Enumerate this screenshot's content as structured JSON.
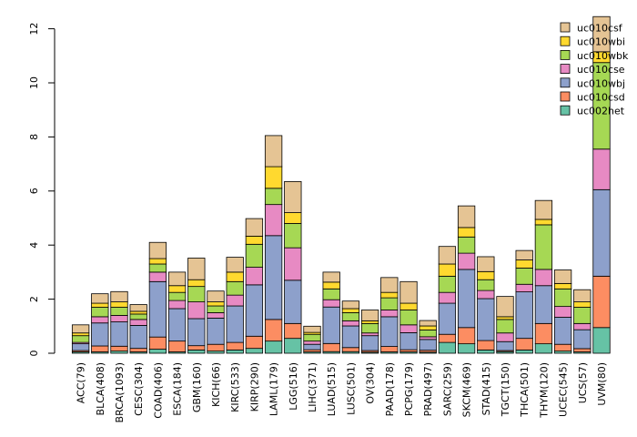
{
  "chart_data": {
    "type": "bar",
    "stacked": true,
    "title": "",
    "xlabel": "",
    "ylabel": "",
    "ylim": [
      0,
      12.5
    ],
    "yticks": [
      0,
      2,
      4,
      6,
      8,
      10,
      12
    ],
    "legend_position": "top-right",
    "categories": [
      "ACC(79)",
      "BLCA(408)",
      "BRCA(1093)",
      "CESC(304)",
      "COAD(406)",
      "ESCA(184)",
      "GBM(160)",
      "KICH(66)",
      "KIRC(533)",
      "KIRP(290)",
      "LAML(179)",
      "LGG(516)",
      "LIHC(371)",
      "LUAD(515)",
      "LUSC(501)",
      "OV(304)",
      "PAAD(178)",
      "PCPG(179)",
      "PRAD(497)",
      "SARC(259)",
      "SKCM(469)",
      "STAD(415)",
      "TGCT(150)",
      "THCA(501)",
      "THYM(120)",
      "UCEC(545)",
      "UCS(57)",
      "UVM(80)"
    ],
    "series": [
      {
        "name": "uc002het",
        "color": "#66c2a5",
        "values": [
          0.05,
          0.05,
          0.08,
          0.05,
          0.15,
          0.05,
          0.12,
          0.08,
          0.12,
          0.18,
          0.45,
          0.55,
          0.05,
          0.06,
          0.06,
          0.04,
          0.05,
          0.05,
          0.04,
          0.4,
          0.35,
          0.12,
          0.06,
          0.12,
          0.35,
          0.08,
          0.05,
          0.95
        ]
      },
      {
        "name": "uc010csd",
        "color": "#fc8d62",
        "values": [
          0.05,
          0.22,
          0.18,
          0.13,
          0.45,
          0.4,
          0.16,
          0.25,
          0.28,
          0.45,
          0.8,
          0.55,
          0.08,
          0.3,
          0.15,
          0.06,
          0.2,
          0.08,
          0.07,
          0.3,
          0.6,
          0.35,
          0.04,
          0.43,
          0.75,
          0.25,
          0.12,
          1.9
        ]
      },
      {
        "name": "uc010wbj",
        "color": "#8da0cb",
        "values": [
          0.25,
          0.85,
          0.9,
          0.85,
          2.05,
          1.2,
          1.0,
          0.97,
          1.35,
          1.9,
          3.1,
          1.6,
          0.2,
          1.35,
          0.8,
          0.55,
          1.1,
          0.63,
          0.4,
          1.15,
          2.15,
          1.55,
          0.33,
          1.72,
          1.4,
          1.0,
          0.7,
          3.2
        ]
      },
      {
        "name": "uc010cse",
        "color": "#e78ac3",
        "values": [
          0.05,
          0.23,
          0.24,
          0.22,
          0.35,
          0.3,
          0.62,
          0.2,
          0.4,
          0.65,
          1.15,
          1.2,
          0.12,
          0.27,
          0.19,
          0.1,
          0.25,
          0.29,
          0.1,
          0.4,
          0.6,
          0.3,
          0.32,
          0.28,
          0.6,
          0.4,
          0.23,
          1.5
        ]
      },
      {
        "name": "uc010wbk",
        "color": "#a6d854",
        "values": [
          0.25,
          0.35,
          0.3,
          0.2,
          0.3,
          0.3,
          0.57,
          0.25,
          0.5,
          0.85,
          0.6,
          0.9,
          0.25,
          0.4,
          0.3,
          0.35,
          0.45,
          0.55,
          0.25,
          0.6,
          0.6,
          0.4,
          0.5,
          0.6,
          1.65,
          0.65,
          0.6,
          3.2
        ]
      },
      {
        "name": "uc010wbi",
        "color": "#ffd92f",
        "values": [
          0.1,
          0.15,
          0.2,
          0.1,
          0.2,
          0.25,
          0.25,
          0.15,
          0.35,
          0.3,
          0.8,
          0.4,
          0.07,
          0.25,
          0.15,
          0.1,
          0.2,
          0.25,
          0.15,
          0.45,
          0.35,
          0.3,
          0.1,
          0.3,
          0.2,
          0.2,
          0.2,
          0.4
        ]
      },
      {
        "name": "uc010csf",
        "color": "#e5c494",
        "values": [
          0.3,
          0.35,
          0.38,
          0.25,
          0.6,
          0.5,
          0.8,
          0.4,
          0.55,
          0.65,
          1.15,
          1.15,
          0.23,
          0.37,
          0.28,
          0.4,
          0.55,
          0.8,
          0.2,
          0.65,
          0.8,
          0.55,
          0.75,
          0.35,
          0.7,
          0.5,
          0.45,
          1.3
        ]
      }
    ]
  }
}
